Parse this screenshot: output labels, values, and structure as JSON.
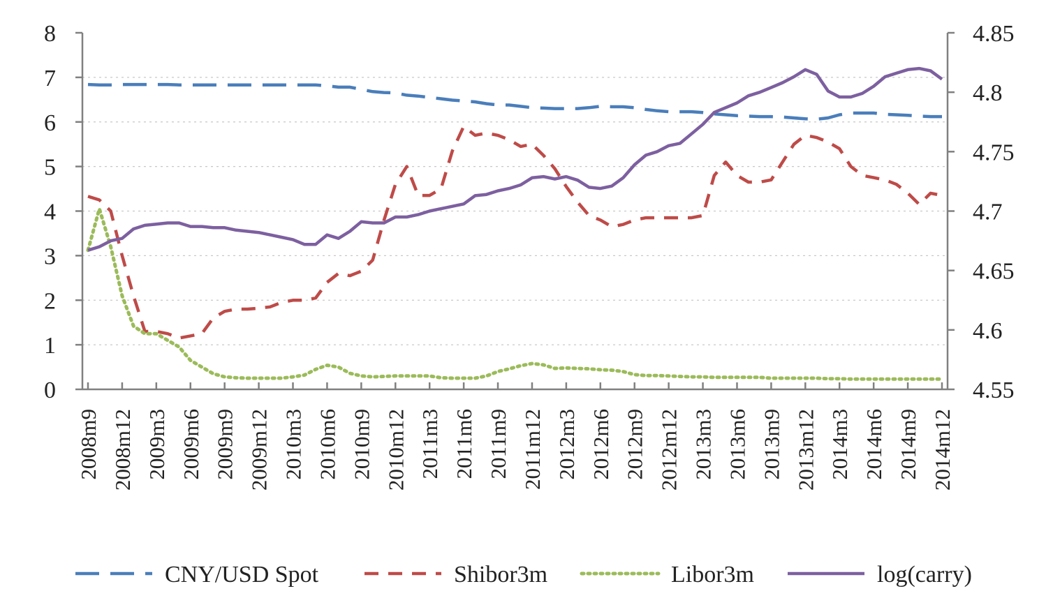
{
  "chart_data": {
    "type": "line",
    "title": "",
    "xlabel": "",
    "ylabel": "",
    "ylim": [
      0,
      8
    ],
    "y2lim": [
      4.55,
      4.85
    ],
    "yticks": [
      "0",
      "1",
      "2",
      "3",
      "4",
      "5",
      "6",
      "7",
      "8"
    ],
    "y2ticks": [
      "4.55",
      "4.6",
      "4.65",
      "4.7",
      "4.75",
      "4.8",
      "4.85"
    ],
    "grid": "horizontal dotted",
    "legend_position": "bottom",
    "categories": [
      "2008m9",
      "2008m10",
      "2008m11",
      "2008m12",
      "2009m1",
      "2009m2",
      "2009m3",
      "2009m4",
      "2009m5",
      "2009m6",
      "2009m7",
      "2009m8",
      "2009m9",
      "2009m10",
      "2009m11",
      "2009m12",
      "2010m1",
      "2010m2",
      "2010m3",
      "2010m4",
      "2010m5",
      "2010m6",
      "2010m7",
      "2010m8",
      "2010m9",
      "2010m10",
      "2010m11",
      "2010m12",
      "2011m1",
      "2011m2",
      "2011m3",
      "2011m4",
      "2011m5",
      "2011m6",
      "2011m7",
      "2011m8",
      "2011m9",
      "2011m10",
      "2011m11",
      "2011m12",
      "2012m1",
      "2012m2",
      "2012m3",
      "2012m4",
      "2012m5",
      "2012m6",
      "2012m7",
      "2012m8",
      "2012m9",
      "2012m10",
      "2012m11",
      "2012m12",
      "2013m1",
      "2013m2",
      "2013m3",
      "2013m4",
      "2013m5",
      "2013m6",
      "2013m7",
      "2013m8",
      "2013m9",
      "2013m10",
      "2013m11",
      "2013m12",
      "2014m1",
      "2014m2",
      "2014m3",
      "2014m4",
      "2014m5",
      "2014m6",
      "2014m7",
      "2014m8",
      "2014m9",
      "2014m10",
      "2014m11",
      "2014m12"
    ],
    "xtick_labels": [
      "2008m9",
      "2008m12",
      "2009m3",
      "2009m6",
      "2009m9",
      "2009m12",
      "2010m3",
      "2010m6",
      "2010m9",
      "2010m12",
      "2011m3",
      "2011m6",
      "2011m9",
      "2011m12",
      "2012m3",
      "2012m6",
      "2012m9",
      "2012m12",
      "2013m3",
      "2013m6",
      "2013m9",
      "2013m12",
      "2014m3",
      "2014m6",
      "2014m9",
      "2014m12"
    ],
    "series": [
      {
        "name": "CNY/USD Spot",
        "axis": "left",
        "color": "#4a7ebb",
        "style": "long-dash",
        "values": [
          6.84,
          6.83,
          6.83,
          6.84,
          6.84,
          6.84,
          6.84,
          6.84,
          6.83,
          6.83,
          6.83,
          6.83,
          6.83,
          6.83,
          6.83,
          6.83,
          6.83,
          6.83,
          6.83,
          6.83,
          6.83,
          6.81,
          6.78,
          6.78,
          6.73,
          6.68,
          6.66,
          6.65,
          6.6,
          6.58,
          6.55,
          6.52,
          6.49,
          6.47,
          6.45,
          6.41,
          6.38,
          6.38,
          6.35,
          6.32,
          6.31,
          6.3,
          6.3,
          6.3,
          6.32,
          6.35,
          6.34,
          6.34,
          6.32,
          6.28,
          6.25,
          6.23,
          6.23,
          6.23,
          6.21,
          6.18,
          6.16,
          6.14,
          6.13,
          6.12,
          6.12,
          6.11,
          6.09,
          6.07,
          6.06,
          6.09,
          6.16,
          6.2,
          6.2,
          6.2,
          6.17,
          6.16,
          6.15,
          6.13,
          6.12,
          6.12
        ]
      },
      {
        "name": "Shibor3m",
        "axis": "left",
        "color": "#be4b48",
        "style": "dash",
        "values": [
          4.33,
          4.25,
          4.0,
          3.0,
          2.1,
          1.3,
          1.3,
          1.25,
          1.15,
          1.2,
          1.25,
          1.6,
          1.75,
          1.8,
          1.8,
          1.82,
          1.85,
          1.95,
          2.0,
          2.0,
          2.05,
          2.4,
          2.6,
          2.55,
          2.65,
          2.9,
          3.8,
          4.6,
          5.0,
          4.35,
          4.35,
          4.5,
          5.35,
          5.9,
          5.7,
          5.75,
          5.7,
          5.6,
          5.45,
          5.5,
          5.25,
          4.95,
          4.55,
          4.2,
          3.9,
          3.8,
          3.65,
          3.7,
          3.8,
          3.85,
          3.85,
          3.85,
          3.85,
          3.85,
          3.9,
          4.8,
          5.1,
          4.8,
          4.65,
          4.65,
          4.7,
          5.1,
          5.5,
          5.7,
          5.65,
          5.55,
          5.4,
          5.0,
          4.8,
          4.75,
          4.7,
          4.6,
          4.4,
          4.15,
          4.4,
          4.35
        ]
      },
      {
        "name": "Libor3m",
        "axis": "left",
        "color": "#9bbb59",
        "style": "dot",
        "values": [
          3.12,
          4.05,
          3.2,
          2.1,
          1.42,
          1.25,
          1.25,
          1.1,
          0.95,
          0.65,
          0.5,
          0.35,
          0.28,
          0.26,
          0.25,
          0.25,
          0.25,
          0.25,
          0.28,
          0.32,
          0.45,
          0.54,
          0.5,
          0.36,
          0.3,
          0.28,
          0.29,
          0.3,
          0.3,
          0.3,
          0.3,
          0.26,
          0.25,
          0.25,
          0.25,
          0.3,
          0.4,
          0.46,
          0.53,
          0.58,
          0.55,
          0.47,
          0.48,
          0.47,
          0.46,
          0.44,
          0.43,
          0.4,
          0.33,
          0.31,
          0.31,
          0.3,
          0.29,
          0.28,
          0.28,
          0.27,
          0.27,
          0.27,
          0.27,
          0.27,
          0.25,
          0.25,
          0.25,
          0.25,
          0.25,
          0.24,
          0.24,
          0.23,
          0.23,
          0.23,
          0.23,
          0.23,
          0.23,
          0.23,
          0.23,
          0.23
        ]
      },
      {
        "name": "log(carry)",
        "axis": "right",
        "color": "#7d60a0",
        "style": "solid",
        "values": [
          4.667,
          4.67,
          4.675,
          4.677,
          4.685,
          4.688,
          4.689,
          4.69,
          4.69,
          4.687,
          4.687,
          4.686,
          4.686,
          4.684,
          4.683,
          4.682,
          4.68,
          4.678,
          4.676,
          4.672,
          4.672,
          4.68,
          4.677,
          4.683,
          4.691,
          4.69,
          4.69,
          4.695,
          4.695,
          4.697,
          4.7,
          4.702,
          4.704,
          4.706,
          4.713,
          4.714,
          4.717,
          4.719,
          4.722,
          4.728,
          4.729,
          4.727,
          4.729,
          4.726,
          4.72,
          4.719,
          4.721,
          4.728,
          4.739,
          4.747,
          4.75,
          4.755,
          4.757,
          4.765,
          4.773,
          4.783,
          4.787,
          4.791,
          4.797,
          4.8,
          4.804,
          4.808,
          4.813,
          4.819,
          4.815,
          4.801,
          4.796,
          4.796,
          4.799,
          4.805,
          4.813,
          4.816,
          4.819,
          4.82,
          4.818,
          4.811
        ]
      }
    ]
  }
}
